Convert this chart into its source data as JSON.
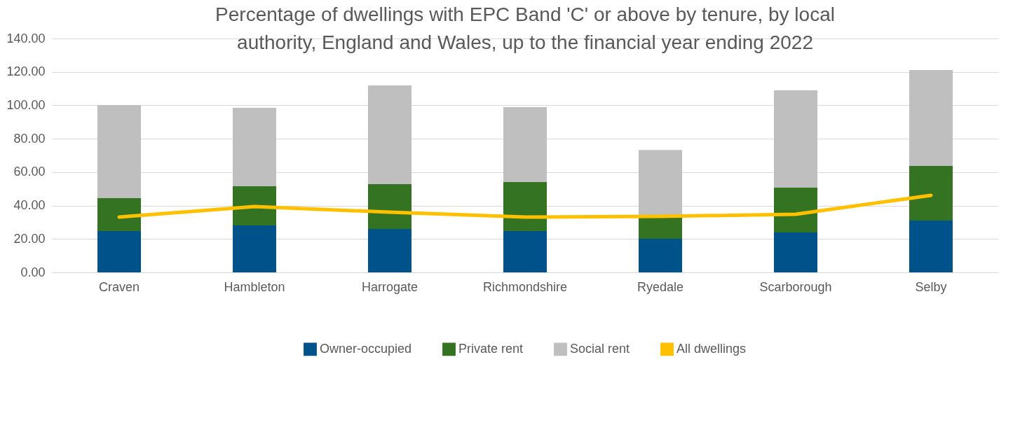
{
  "chart_data": {
    "type": "bar",
    "title": "Percentage of dwellings with EPC Band 'C' or above by tenure, by local authority, England and Wales, up to the financial year ending 2022",
    "categories": [
      "Craven",
      "Hambleton",
      "Harrogate",
      "Richmondshire",
      "Ryedale",
      "Scarborough",
      "Selby"
    ],
    "stacked": true,
    "series": [
      {
        "name": "Owner-occupied",
        "color": "#00538a",
        "values": [
          24.7,
          28.1,
          26.0,
          24.7,
          20.1,
          23.9,
          31.0
        ]
      },
      {
        "name": "Private rent",
        "color": "#337321",
        "values": [
          19.7,
          23.5,
          26.8,
          29.4,
          13.4,
          26.8,
          32.7
        ]
      },
      {
        "name": "Social rent",
        "color": "#bfbfbf",
        "values": [
          55.8,
          46.9,
          59.1,
          44.8,
          39.8,
          58.3,
          57.4
        ]
      },
      {
        "name": "All dwellings",
        "color": "#ffc000",
        "type": "line",
        "values": [
          33.1,
          39.4,
          36.0,
          33.1,
          33.5,
          34.8,
          46.1
        ]
      }
    ],
    "ylim": [
      0,
      140
    ],
    "yticks": [
      {
        "value": 0,
        "label": "0.00"
      },
      {
        "value": 20,
        "label": "20.00"
      },
      {
        "value": 40,
        "label": "40.00"
      },
      {
        "value": 60,
        "label": "60.00"
      },
      {
        "value": 80,
        "label": "80.00"
      },
      {
        "value": 100,
        "label": "100.00"
      },
      {
        "value": 120,
        "label": "120.00"
      },
      {
        "value": 140,
        "label": "140.00"
      }
    ],
    "grid": "y",
    "legend": "bottom"
  }
}
